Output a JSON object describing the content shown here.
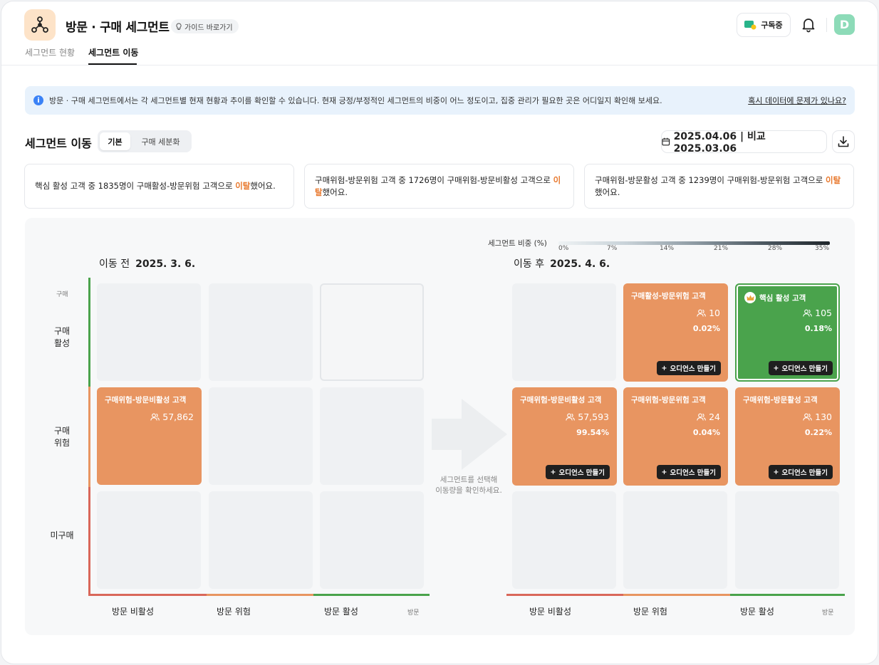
{
  "app": {
    "title": "방문 · 구매 세그먼트",
    "guide_label": "가이드 바로가기",
    "subscribe_label": "구독중",
    "avatar_initial": "D",
    "tabs": [
      {
        "label": "세그먼트 현황",
        "active": false
      },
      {
        "label": "세그먼트 이동",
        "active": true
      }
    ]
  },
  "banner": {
    "text": "방문 · 구매 세그먼트에서는 각 세그먼트별 현재 현황과 추이를 확인할 수 있습니다. 현재 긍정/부정적인 세그먼트의 비중이 어느 정도이고, 집중 관리가 필요한 곳은 어디일지 확인해 보세요.",
    "link": "혹시 데이터에 문제가 있나요?"
  },
  "section": {
    "title": "세그먼트 이동",
    "toggle": [
      "기본",
      "구매 세분화"
    ],
    "date_range": "2025.04.06 | 비교 2025.03.06"
  },
  "summaries": [
    {
      "before": "핵심 활성 고객 중 1835명이 구매활성-방문위험 고객으로 ",
      "highlight": "이탈",
      "after": "했어요."
    },
    {
      "before": "구매위험-방문위험 고객 중 1726명이 구매위험-방문비활성 고객으로 ",
      "highlight": "이탈",
      "after": "했어요."
    },
    {
      "before": "구매위험-방문활성 고객 중 1239명이 구매위험-방문위험 고객으로 ",
      "highlight": "이탈",
      "after": "했어요."
    }
  ],
  "matrix": {
    "legend_title": "세그먼트 비중 (%)",
    "legend_ticks": [
      "0%",
      "7%",
      "14%",
      "21%",
      "28%",
      "35%"
    ],
    "before_label": "이동 전",
    "before_date": "2025. 3. 6.",
    "after_label": "이동 후",
    "after_date": "2025. 4. 6.",
    "y_axis_name": "구매",
    "x_axis_name": "방문",
    "rows": [
      "구매\n활성",
      "구매\n위험",
      "미구매"
    ],
    "cols": [
      "방문 비활성",
      "방문 위험",
      "방문 활성"
    ],
    "hint": "세그먼트를 선택해\n이동량을 확인하세요.",
    "audience_label": "오디언스 만들기",
    "colors": {
      "active": "#4aa34c",
      "risk": "#e89561",
      "inactive": "#d9675a"
    },
    "before_segment": {
      "name": "구매위험-방문비활성 고객",
      "count": "57,862"
    },
    "after_segments": [
      {
        "name": "구매활성-방문위험 고객",
        "count": "10",
        "pct": "0.02%"
      },
      {
        "name": "핵심 활성 고객",
        "count": "105",
        "pct": "0.18%"
      },
      {
        "name": "구매위험-방문비활성 고객",
        "count": "57,593",
        "pct": "99.54%"
      },
      {
        "name": "구매위험-방문위험 고객",
        "count": "24",
        "pct": "0.04%"
      },
      {
        "name": "구매위험-방문활성 고객",
        "count": "130",
        "pct": "0.22%"
      }
    ]
  }
}
